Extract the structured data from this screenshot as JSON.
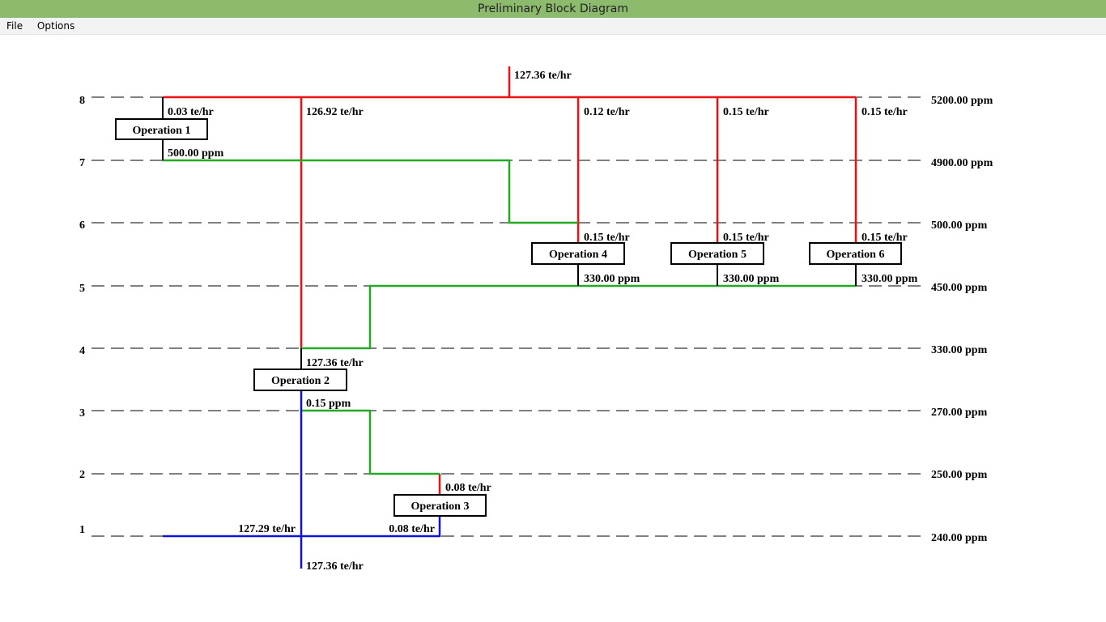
{
  "window": {
    "title": "Preliminary Block Diagram",
    "menu": [
      "File",
      "Options"
    ]
  },
  "diagram": {
    "level_labels": [
      "8",
      "7",
      "6",
      "5",
      "4",
      "3",
      "2",
      "1"
    ],
    "concentration_labels": [
      "5200.00 ppm",
      "4900.00 ppm",
      "500.00 ppm",
      "450.00 ppm",
      "330.00 ppm",
      "270.00 ppm",
      "250.00 ppm",
      "240.00 ppm"
    ],
    "operations": [
      "Operation 1",
      "Operation 2",
      "Operation 3",
      "Operation 4",
      "Operation 5",
      "Operation 6"
    ],
    "flow_labels": [
      "127.36 te/hr",
      "0.03 te/hr",
      "126.92 te/hr",
      "0.12 te/hr",
      "0.15 te/hr",
      "0.15 te/hr",
      "500.00 ppm",
      "0.15 te/hr",
      "0.15 te/hr",
      "0.15 te/hr",
      "330.00 ppm",
      "330.00 ppm",
      "330.00 ppm",
      "127.36 te/hr",
      "0.15 ppm",
      "0.08 te/hr",
      "127.29 te/hr",
      "0.08 te/hr",
      "127.36 te/hr"
    ]
  }
}
